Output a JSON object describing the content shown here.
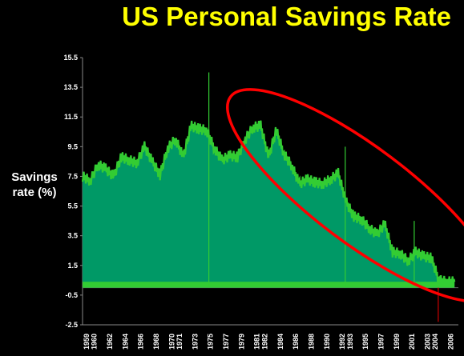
{
  "chart_data": {
    "type": "area",
    "title": "US Personal Savings Rate",
    "xlabel": "",
    "ylabel": "Savings rate (%)",
    "ylabel_lines": [
      "Savings",
      "rate (%)"
    ],
    "ylim": [
      -2.5,
      15.5
    ],
    "yticks": [
      15.5,
      13.5,
      11.5,
      9.5,
      7.5,
      5.5,
      3.5,
      1.5,
      -0.5,
      -2.5
    ],
    "xlim": [
      1959,
      2007.5
    ],
    "xticks": [
      1959,
      1960,
      1962,
      1964,
      1966,
      1968,
      1970,
      1971,
      1973,
      1975,
      1977,
      1979,
      1981,
      1982,
      1984,
      1986,
      1988,
      1990,
      1992,
      1993,
      1995,
      1997,
      1999,
      2001,
      2003,
      2004,
      2006
    ],
    "series": [
      {
        "name": "",
        "color": "#009966",
        "edge_color": "#33cc33",
        "x": [
          1959,
          1960,
          1961,
          1962,
          1963,
          1964,
          1965,
          1966,
          1967,
          1968,
          1969,
          1970,
          1971,
          1972,
          1973,
          1974,
          1975,
          1976,
          1977,
          1978,
          1979,
          1980,
          1981,
          1982,
          1983,
          1984,
          1985,
          1986,
          1987,
          1988,
          1989,
          1990,
          1991,
          1992,
          1993,
          1994,
          1995,
          1996,
          1997,
          1998,
          1999,
          2000,
          2001,
          2002,
          2003,
          2004,
          2005,
          2006,
          2007
        ],
        "values": [
          7.5,
          7.2,
          8.3,
          8.0,
          7.5,
          8.8,
          8.6,
          8.4,
          9.5,
          8.5,
          7.6,
          9.4,
          10.0,
          8.8,
          10.9,
          10.7,
          10.6,
          9.4,
          8.6,
          8.9,
          8.8,
          10.0,
          10.8,
          10.9,
          8.8,
          10.6,
          9.0,
          8.2,
          7.0,
          7.3,
          7.1,
          7.0,
          7.3,
          7.7,
          5.8,
          4.8,
          4.6,
          4.0,
          3.6,
          4.3,
          2.4,
          2.3,
          1.8,
          2.4,
          2.1,
          2.0,
          0.5,
          0.4,
          0.4
        ]
      }
    ],
    "annotations": [
      {
        "type": "ellipse",
        "color": "#ff0000",
        "from_x": 1981,
        "to_x": 2007,
        "note": ""
      }
    ],
    "spikes": [
      {
        "x": 1975.3,
        "value": 14.5
      },
      {
        "x": 1992.9,
        "value": 9.5
      },
      {
        "x": 2001.8,
        "value": 4.5
      },
      {
        "x": 2004.9,
        "value": -2.3
      }
    ],
    "grid": false,
    "legend": "none"
  }
}
